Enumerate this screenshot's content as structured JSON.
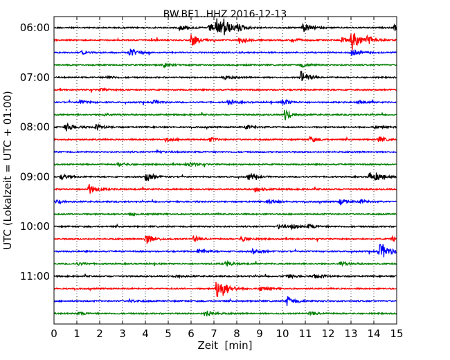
{
  "chart_data": {
    "type": "line",
    "title": "BW.BE1..HHZ 2016-12-13",
    "xlabel": "Zeit  [min]",
    "ylabel": "UTC (Lokalzeit = UTC + 01:00)",
    "xlim": [
      0,
      15
    ],
    "x_ticks": [
      "0",
      "1",
      "2",
      "3",
      "4",
      "5",
      "6",
      "7",
      "8",
      "9",
      "10",
      "11",
      "12",
      "13",
      "14",
      "15"
    ],
    "y_ticks": [
      "06:00",
      "07:00",
      "08:00",
      "09:00",
      "10:00",
      "11:00"
    ],
    "trace_colors": [
      "#000000",
      "#ff0000",
      "#0000ff",
      "#008000"
    ],
    "grid": "vertical dotted",
    "traces": [
      {
        "start": "06:00",
        "events": [
          [
            5.5,
            4
          ],
          [
            7.1,
            14
          ],
          [
            7.4,
            10
          ],
          [
            6.8,
            6
          ],
          [
            8.0,
            5
          ],
          [
            10.9,
            7
          ],
          [
            14.9,
            5
          ]
        ]
      },
      {
        "start": "06:15",
        "events": [
          [
            6.0,
            9
          ],
          [
            8.1,
            5
          ],
          [
            10.4,
            3
          ],
          [
            12.6,
            3
          ],
          [
            13.0,
            17
          ],
          [
            13.7,
            6
          ]
        ]
      },
      {
        "start": "06:30",
        "events": [
          [
            3.3,
            6
          ],
          [
            13.0,
            5
          ],
          [
            1.2,
            2
          ]
        ]
      },
      {
        "start": "06:45",
        "events": [
          [
            4.8,
            3
          ],
          [
            10.8,
            4
          ]
        ]
      },
      {
        "start": "07:00",
        "events": [
          [
            10.8,
            10
          ],
          [
            7.4,
            3
          ],
          [
            2.3,
            2
          ]
        ]
      },
      {
        "start": "07:15",
        "events": [
          [
            2.0,
            2
          ]
        ]
      },
      {
        "start": "07:30",
        "events": [
          [
            1.1,
            3
          ],
          [
            4.3,
            3
          ],
          [
            7.6,
            3
          ],
          [
            10.0,
            5
          ],
          [
            13.3,
            3
          ]
        ]
      },
      {
        "start": "07:45",
        "events": [
          [
            10.1,
            9
          ],
          [
            2.2,
            2
          ]
        ]
      },
      {
        "start": "08:00",
        "events": [
          [
            0.5,
            6
          ],
          [
            1.8,
            4
          ],
          [
            8.4,
            3
          ],
          [
            14.0,
            2
          ]
        ]
      },
      {
        "start": "08:15",
        "events": [
          [
            4.9,
            3
          ],
          [
            6.8,
            3
          ],
          [
            11.2,
            4
          ],
          [
            14.2,
            4
          ]
        ]
      },
      {
        "start": "08:30",
        "events": [
          [
            4.5,
            2
          ]
        ]
      },
      {
        "start": "08:45",
        "events": [
          [
            2.8,
            3
          ],
          [
            5.8,
            4
          ]
        ]
      },
      {
        "start": "09:00",
        "events": [
          [
            0.3,
            4
          ],
          [
            4.0,
            8
          ],
          [
            8.5,
            5
          ],
          [
            13.8,
            7
          ],
          [
            14.1,
            3
          ]
        ]
      },
      {
        "start": "09:15",
        "events": [
          [
            1.5,
            8
          ],
          [
            8.8,
            4
          ]
        ]
      },
      {
        "start": "09:30",
        "events": [
          [
            0.1,
            3
          ],
          [
            9.4,
            3
          ],
          [
            12.5,
            4
          ],
          [
            13.4,
            3
          ]
        ]
      },
      {
        "start": "09:45",
        "events": [
          [
            3.3,
            2
          ]
        ]
      },
      {
        "start": "10:00",
        "events": [
          [
            9.8,
            3
          ],
          [
            10.4,
            3
          ],
          [
            11.1,
            3
          ]
        ]
      },
      {
        "start": "10:15",
        "events": [
          [
            4.0,
            8
          ],
          [
            6.1,
            4
          ],
          [
            8.2,
            4
          ],
          [
            14.8,
            4
          ]
        ]
      },
      {
        "start": "10:30",
        "events": [
          [
            6.3,
            4
          ],
          [
            8.7,
            4
          ],
          [
            14.2,
            12
          ],
          [
            14.4,
            4
          ]
        ]
      },
      {
        "start": "10:45",
        "events": [
          [
            1.0,
            2
          ],
          [
            7.5,
            4
          ],
          [
            12.5,
            4
          ]
        ]
      },
      {
        "start": "11:00",
        "events": [
          [
            5.3,
            3
          ],
          [
            10.2,
            3
          ],
          [
            11.4,
            4
          ]
        ]
      },
      {
        "start": "11:15",
        "events": [
          [
            7.1,
            15
          ],
          [
            7.4,
            6
          ],
          [
            9.0,
            3
          ]
        ]
      },
      {
        "start": "11:30",
        "events": [
          [
            3.3,
            2
          ],
          [
            10.2,
            7
          ]
        ]
      },
      {
        "start": "11:45",
        "events": [
          [
            6.6,
            6
          ],
          [
            11.2,
            3
          ],
          [
            1.0,
            2
          ]
        ]
      }
    ]
  }
}
